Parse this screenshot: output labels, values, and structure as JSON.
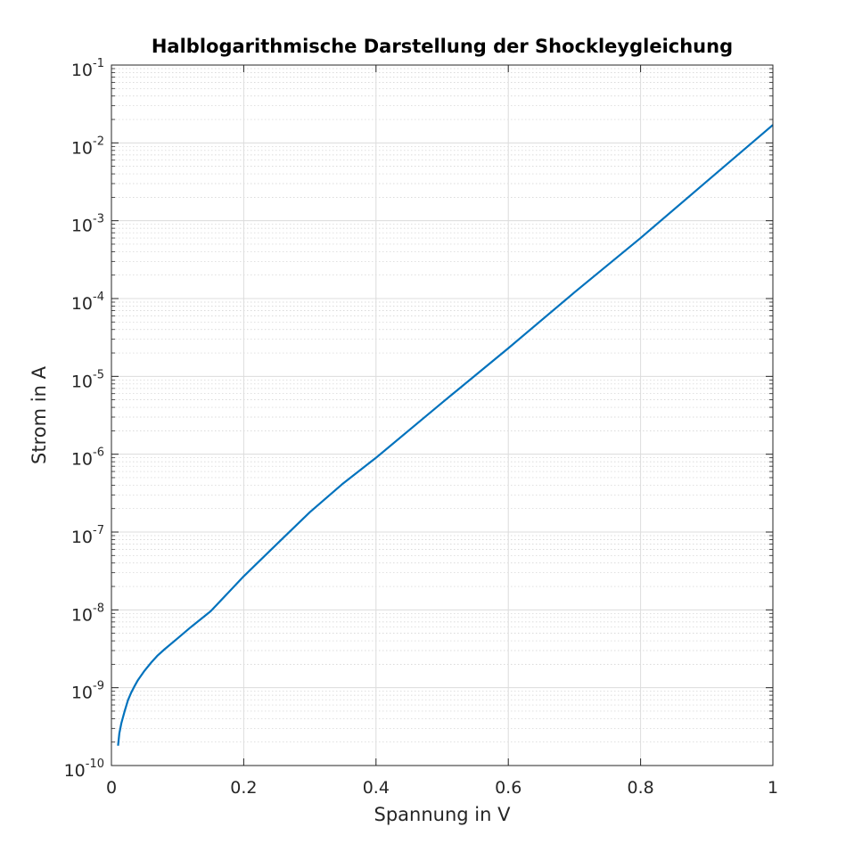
{
  "chart_data": {
    "type": "line",
    "title": "Halblogarithmische Darstellung der Shockleygleichung",
    "xlabel": "Spannung in V",
    "ylabel": "Strom in A",
    "xlim": [
      0,
      1
    ],
    "ylim": [
      1e-10,
      0.1
    ],
    "yscale": "log",
    "grid": true,
    "minor_grid": true,
    "x_ticks": [
      0,
      0.2,
      0.4,
      0.6,
      0.8,
      1
    ],
    "x_tick_labels": [
      "0",
      "0.2",
      "0.4",
      "0.6",
      "0.8",
      "1"
    ],
    "y_ticks": [
      1e-10,
      1e-09,
      1e-08,
      1e-07,
      1e-06,
      1e-05,
      0.0001,
      0.001,
      0.01,
      0.1
    ],
    "y_tick_labels": [
      {
        "base": "10",
        "exp": "-10"
      },
      {
        "base": "10",
        "exp": "-9"
      },
      {
        "base": "10",
        "exp": "-8"
      },
      {
        "base": "10",
        "exp": "-7"
      },
      {
        "base": "10",
        "exp": "-6"
      },
      {
        "base": "10",
        "exp": "-5"
      },
      {
        "base": "10",
        "exp": "-4"
      },
      {
        "base": "10",
        "exp": "-3"
      },
      {
        "base": "10",
        "exp": "-2"
      },
      {
        "base": "10",
        "exp": "-1"
      }
    ],
    "series": [
      {
        "color": "#0072bd",
        "x": [
          0.01,
          0.012,
          0.015,
          0.02,
          0.025,
          0.03,
          0.035,
          0.04,
          0.05,
          0.06,
          0.07,
          0.08,
          0.1,
          0.12,
          0.15,
          0.2,
          0.25,
          0.3,
          0.35,
          0.4,
          0.5,
          0.6,
          0.7,
          0.8,
          0.9,
          1.0
        ],
        "y": [
          1.8e-10,
          2.6e-10,
          3.5e-10,
          5e-10,
          6.9e-10,
          8.7e-10,
          1.05e-09,
          1.25e-09,
          1.65e-09,
          2.1e-09,
          2.6e-09,
          3.1e-09,
          4.3e-09,
          6e-09,
          9.6e-09,
          2.7e-08,
          7e-08,
          1.8e-07,
          4.2e-07,
          9e-07,
          4.6e-06,
          2.3e-05,
          0.00012,
          0.0006,
          0.0032,
          0.017
        ]
      }
    ]
  }
}
